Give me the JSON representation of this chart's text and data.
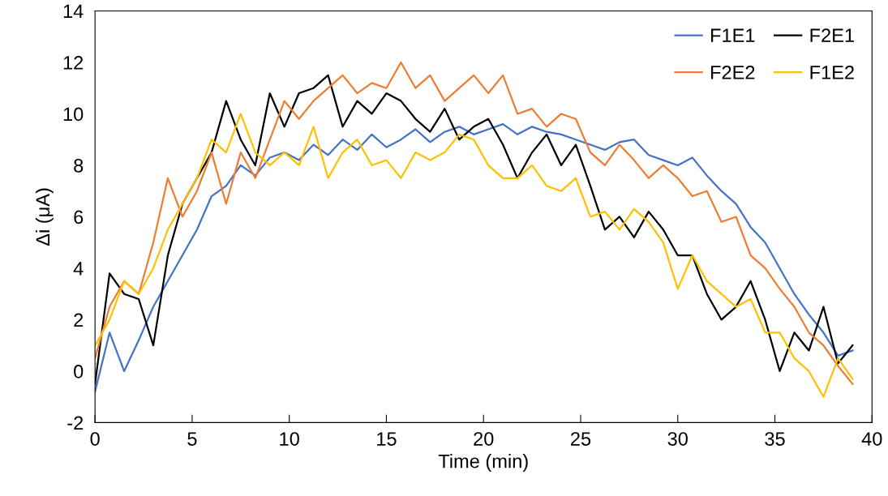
{
  "chart_data": {
    "type": "line",
    "xlabel": "Time (min)",
    "ylabel": "Δi (μA)",
    "x": [
      0,
      0.75,
      1.5,
      2.25,
      3,
      3.75,
      4.5,
      5.25,
      6,
      6.75,
      7.5,
      8.25,
      9,
      9.75,
      10.5,
      11.25,
      12,
      12.75,
      13.5,
      14.25,
      15,
      15.75,
      16.5,
      17.25,
      18,
      18.75,
      19.5,
      20.25,
      21,
      21.75,
      22.5,
      23.25,
      24,
      24.75,
      25.5,
      26.25,
      27,
      27.75,
      28.5,
      29.25,
      30,
      30.75,
      31.5,
      32.25,
      33,
      33.75,
      34.5,
      35.25,
      36,
      36.75,
      37.5,
      38.25,
      39
    ],
    "series": [
      {
        "name": "F1E1",
        "color": "#4472c4",
        "values": [
          -0.8,
          1.5,
          0,
          1.2,
          2.5,
          3.5,
          4.5,
          5.5,
          6.8,
          7.2,
          8.0,
          7.6,
          8.3,
          8.5,
          8.2,
          8.8,
          8.4,
          9.0,
          8.6,
          9.2,
          8.7,
          9.0,
          9.4,
          8.9,
          9.3,
          9.5,
          9.2,
          9.4,
          9.6,
          9.2,
          9.5,
          9.3,
          9.2,
          9.0,
          8.8,
          8.6,
          8.9,
          9.0,
          8.4,
          8.2,
          8.0,
          8.3,
          7.6,
          7.0,
          6.5,
          5.6,
          5.0,
          4.0,
          3.0,
          2.2,
          1.5,
          0.6,
          0.8
        ]
      },
      {
        "name": "F2E1",
        "color": "#000000",
        "values": [
          -0.5,
          3.8,
          3.0,
          2.8,
          1.0,
          4.5,
          6.5,
          7.5,
          8.5,
          10.5,
          9.0,
          8.0,
          10.8,
          9.5,
          10.8,
          11.0,
          11.5,
          9.5,
          10.5,
          10.0,
          10.8,
          10.5,
          9.8,
          9.3,
          10.2,
          9.0,
          9.5,
          9.8,
          8.8,
          7.5,
          8.5,
          9.2,
          8.0,
          8.8,
          7.2,
          5.5,
          6.0,
          5.2,
          6.2,
          5.5,
          4.5,
          4.5,
          3.0,
          2.0,
          2.5,
          3.5,
          2.0,
          0.0,
          1.5,
          0.8,
          2.5,
          0.3,
          1.0
        ]
      },
      {
        "name": "F2E2",
        "color": "#ed7d31",
        "values": [
          0.5,
          2.5,
          3.5,
          3.0,
          5.0,
          7.5,
          6.0,
          7.0,
          8.5,
          6.5,
          8.5,
          7.5,
          9.0,
          10.5,
          9.8,
          10.5,
          11.0,
          11.5,
          10.8,
          11.2,
          11.0,
          12.0,
          11.0,
          11.5,
          10.5,
          11.0,
          11.5,
          10.8,
          11.5,
          10.0,
          10.2,
          9.5,
          10.0,
          9.8,
          8.5,
          8.0,
          8.8,
          8.2,
          7.5,
          8.0,
          7.5,
          6.8,
          7.0,
          5.8,
          6.0,
          4.5,
          4.0,
          3.2,
          2.5,
          1.5,
          1.0,
          0.2,
          -0.5
        ]
      },
      {
        "name": "F1E2",
        "color": "#ffc000",
        "values": [
          1.0,
          2.0,
          3.5,
          3.0,
          4.0,
          5.5,
          6.5,
          7.5,
          9.0,
          8.5,
          10.0,
          8.5,
          8.0,
          8.5,
          8.0,
          9.5,
          7.5,
          8.5,
          9.0,
          8.0,
          8.2,
          7.5,
          8.5,
          8.2,
          8.5,
          9.2,
          9.0,
          8.0,
          7.5,
          7.5,
          8.0,
          7.2,
          7.0,
          7.5,
          6.0,
          6.2,
          5.5,
          6.3,
          5.8,
          5.0,
          3.2,
          4.5,
          3.5,
          3.0,
          2.5,
          2.8,
          1.5,
          1.5,
          0.5,
          0.0,
          -1.0,
          0.5,
          -0.3
        ]
      }
    ],
    "xlim": [
      0,
      40
    ],
    "xticks": [
      0,
      5,
      10,
      15,
      20,
      25,
      30,
      35,
      40
    ],
    "ylim": [
      -2,
      14
    ],
    "yticks": [
      -2,
      0,
      2,
      4,
      6,
      8,
      10,
      12,
      14
    ],
    "legend": "top right",
    "marker": "none",
    "line_style": "solid"
  }
}
